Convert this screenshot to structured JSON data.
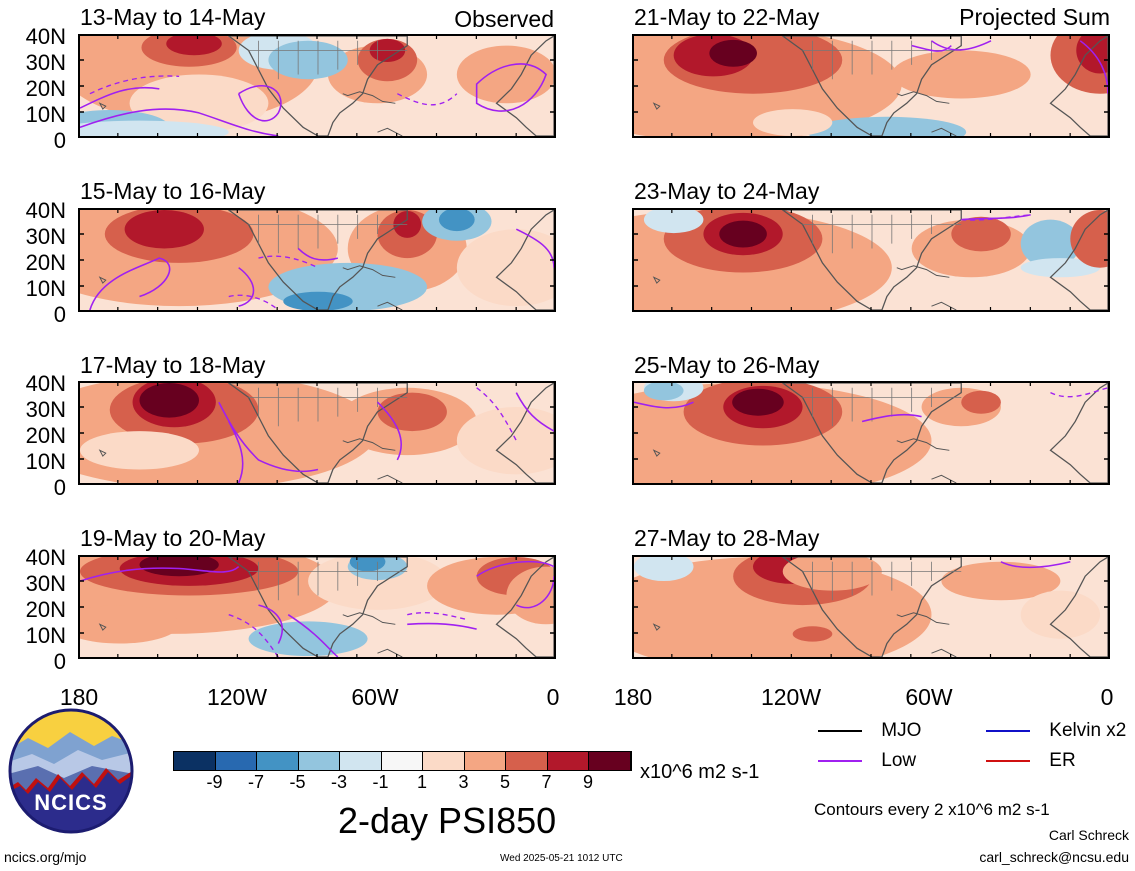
{
  "panels": [
    {
      "title": "13-May to 14-May",
      "tag": "Observed"
    },
    {
      "title": "21-May to 22-May",
      "tag": "Projected Sum"
    },
    {
      "title": "15-May to 16-May",
      "tag": ""
    },
    {
      "title": "23-May to 24-May",
      "tag": ""
    },
    {
      "title": "17-May to 18-May",
      "tag": ""
    },
    {
      "title": "25-May to 26-May",
      "tag": ""
    },
    {
      "title": "19-May to 20-May",
      "tag": ""
    },
    {
      "title": "27-May to 28-May",
      "tag": ""
    }
  ],
  "lat_labels": [
    "40N",
    "30N",
    "20N",
    "10N",
    "0"
  ],
  "lon_labels": [
    "180",
    "120W",
    "60W",
    "0"
  ],
  "colorbar": {
    "colors": [
      "#0b3163",
      "#2869b0",
      "#4393c4",
      "#93c5de",
      "#d1e5f0",
      "#f7f7f7",
      "#fbdac7",
      "#f4a683",
      "#d6604c",
      "#b2182b",
      "#67001f"
    ],
    "ticks": [
      "-9",
      "-7",
      "-5",
      "-3",
      "-1",
      "1",
      "3",
      "5",
      "7",
      "9"
    ],
    "units": "x10^6 m2 s-1",
    "title": "2-day PSI850"
  },
  "legend": {
    "items": [
      {
        "label": "MJO",
        "color": "#000000"
      },
      {
        "label": "Kelvin x2",
        "color": "#1010c8"
      },
      {
        "label": "Low",
        "color": "#a020f0"
      },
      {
        "label": "ER",
        "color": "#d01010"
      }
    ],
    "contour_note": "Contours every 2 x10^6 m2 s-1",
    "author": "Carl Schreck",
    "email": "carl_schreck@ncsu.edu"
  },
  "footer": {
    "url": "ncics.org/mjo",
    "timestamp": "Wed 2025-05-21 1012 UTC",
    "logo_text": "NCICS"
  }
}
